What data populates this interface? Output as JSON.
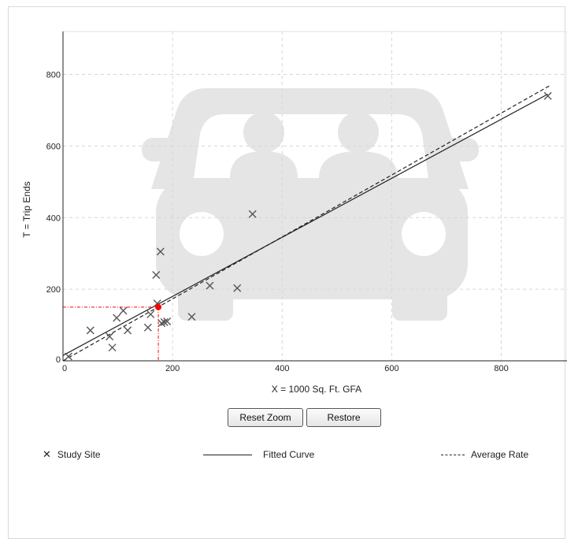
{
  "buttons": {
    "reset_zoom": "Reset Zoom",
    "restore": "Restore"
  },
  "legend": {
    "study_site": "Study Site",
    "fitted_curve": "Fitted Curve",
    "average_rate": "Average Rate"
  },
  "chart_data": {
    "type": "scatter",
    "xlabel": "X = 1000 Sq. Ft. GFA",
    "ylabel": "T = Trip Ends",
    "xlim": [
      0,
      920
    ],
    "ylim": [
      0,
      920
    ],
    "x_ticks": [
      0,
      200,
      400,
      600,
      800
    ],
    "y_ticks": [
      0,
      200,
      400,
      600,
      800
    ],
    "grid": true,
    "legend_position": "bottom",
    "colors": {
      "marker": "#555555",
      "line": "#222222",
      "highlight": "#ff0000",
      "watermark": "#e5e5e5"
    },
    "series": [
      {
        "name": "Study Site",
        "marker": "x",
        "points": [
          [
            10,
            12
          ],
          [
            50,
            85
          ],
          [
            85,
            68
          ],
          [
            90,
            37
          ],
          [
            98,
            120
          ],
          [
            110,
            140
          ],
          [
            118,
            85
          ],
          [
            155,
            93
          ],
          [
            160,
            130
          ],
          [
            170,
            240
          ],
          [
            172,
            160
          ],
          [
            178,
            305
          ],
          [
            180,
            105
          ],
          [
            185,
            108
          ],
          [
            190,
            110
          ],
          [
            235,
            123
          ],
          [
            268,
            210
          ],
          [
            318,
            203
          ],
          [
            346,
            410
          ],
          [
            885,
            740
          ]
        ]
      },
      {
        "name": "Fitted Curve",
        "style": "solid",
        "x": [
          0,
          885
        ],
        "y": [
          15,
          745
        ]
      },
      {
        "name": "Average Rate",
        "style": "dashed",
        "x": [
          0,
          890
        ],
        "y": [
          0,
          770
        ]
      }
    ],
    "highlight": {
      "x": 174,
      "y": 150
    }
  }
}
